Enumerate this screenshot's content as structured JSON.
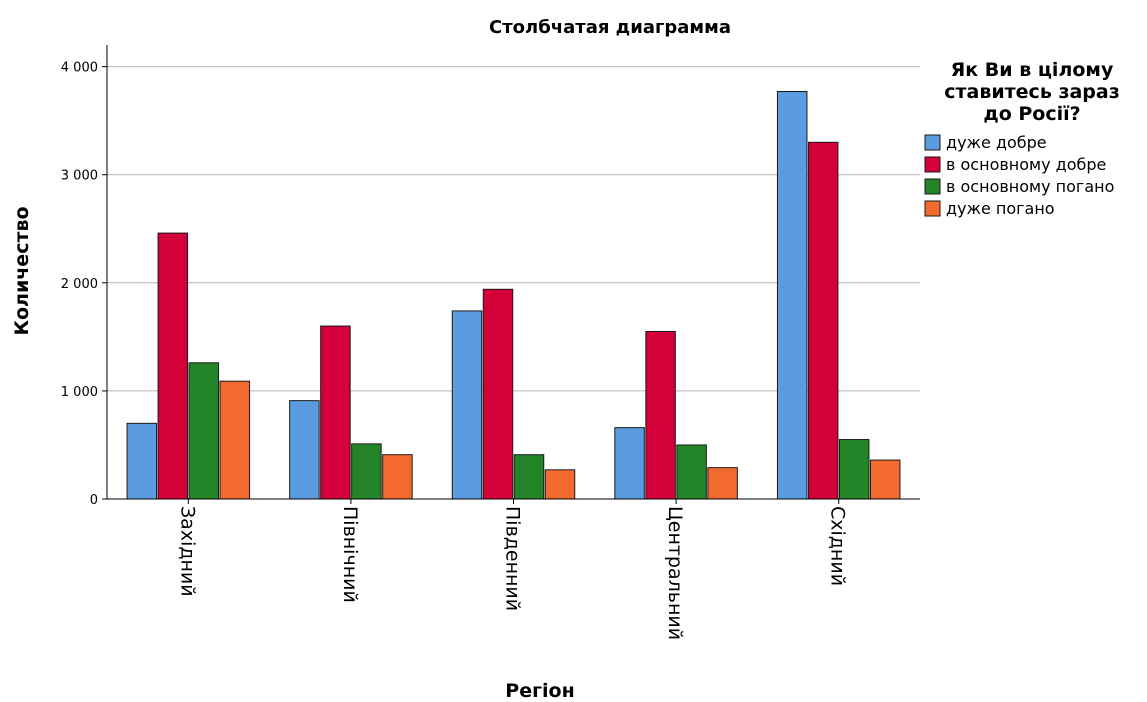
{
  "chart_data": {
    "type": "bar",
    "title": "Столбчатая диаграмма",
    "xlabel": "Регіон",
    "ylabel": "Количество",
    "categories": [
      "Західний",
      "Північний",
      "Південний",
      "Центральний",
      "Східний"
    ],
    "ylim": [
      0,
      4200
    ],
    "yticks": [
      0,
      1000,
      2000,
      3000,
      4000
    ],
    "ytick_labels": [
      "0",
      "1 000",
      "2 000",
      "3 000",
      "4 000"
    ],
    "grid": true,
    "legend_position": "right",
    "legend_title": [
      "Як Ви в цілому",
      "ставитесь зараз",
      "до Росії?"
    ],
    "series": [
      {
        "name": "дуже добре",
        "color": "#5b9bdf",
        "values": [
          700,
          910,
          1740,
          660,
          3770
        ]
      },
      {
        "name": "в основному добре",
        "color": "#d4003a",
        "values": [
          2460,
          1600,
          1940,
          1550,
          3300
        ]
      },
      {
        "name": "в основному погано",
        "color": "#238428",
        "values": [
          1260,
          510,
          410,
          500,
          550
        ]
      },
      {
        "name": "дуже погано",
        "color": "#f26a2e",
        "values": [
          1090,
          410,
          270,
          290,
          360
        ]
      }
    ]
  }
}
